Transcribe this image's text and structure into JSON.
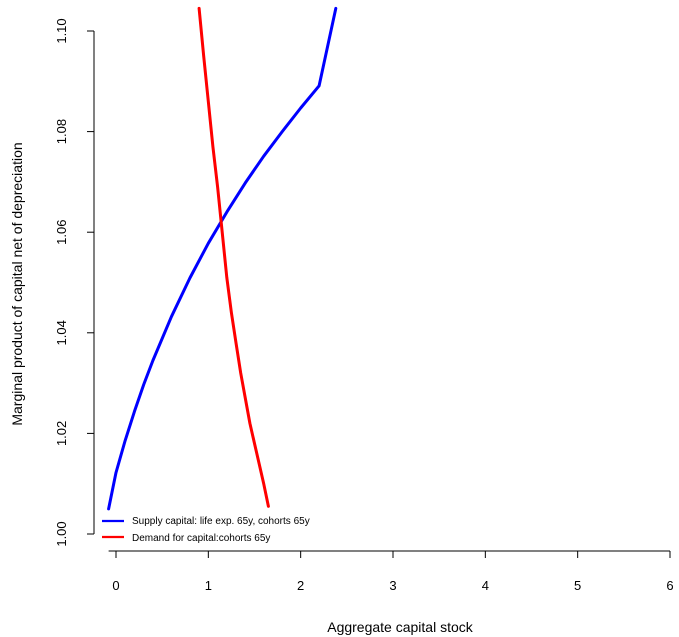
{
  "chart_data": {
    "type": "line",
    "title": "",
    "xlabel": "Aggregate capital stock",
    "ylabel": "Marginal product of capital net of depreciation",
    "xlim": [
      -0.1,
      6
    ],
    "ylim": [
      1.0,
      1.1
    ],
    "x_ticks": [
      0,
      1,
      2,
      3,
      4,
      5,
      6
    ],
    "y_ticks": [
      1.0,
      1.02,
      1.04,
      1.06,
      1.08,
      1.1
    ],
    "x_tick_labels": [
      "0",
      "1",
      "2",
      "3",
      "4",
      "5",
      "6"
    ],
    "y_tick_labels": [
      "1.00",
      "1.02",
      "1.04",
      "1.06",
      "1.08",
      "1.10"
    ],
    "grid": false,
    "legend_position": "bottom-left",
    "series": [
      {
        "name": "Supply capital: life exp. 65y, cohorts 65y",
        "color": "#0000ff",
        "x": [
          -0.08,
          0.0,
          0.1,
          0.2,
          0.3,
          0.4,
          0.6,
          0.8,
          1.0,
          1.2,
          1.4,
          1.6,
          1.8,
          2.0,
          2.2,
          2.38
        ],
        "y": [
          1.005,
          1.0122,
          1.0186,
          1.0244,
          1.0297,
          1.0345,
          1.0432,
          1.0509,
          1.0578,
          1.064,
          1.0698,
          1.0751,
          1.08,
          1.0847,
          1.0891,
          1.1045
        ]
      },
      {
        "name": "Demand for capital:cohorts 65y",
        "color": "#ff0000",
        "x": [
          0.9,
          0.95,
          1.0,
          1.05,
          1.1,
          1.15,
          1.2,
          1.25,
          1.3,
          1.35,
          1.4,
          1.45,
          1.5,
          1.55,
          1.6,
          1.65
        ],
        "y": [
          1.1045,
          1.095,
          1.086,
          1.077,
          1.069,
          1.06,
          1.051,
          1.044,
          1.038,
          1.032,
          1.027,
          1.022,
          1.018,
          1.014,
          1.01,
          1.0055
        ]
      }
    ]
  }
}
